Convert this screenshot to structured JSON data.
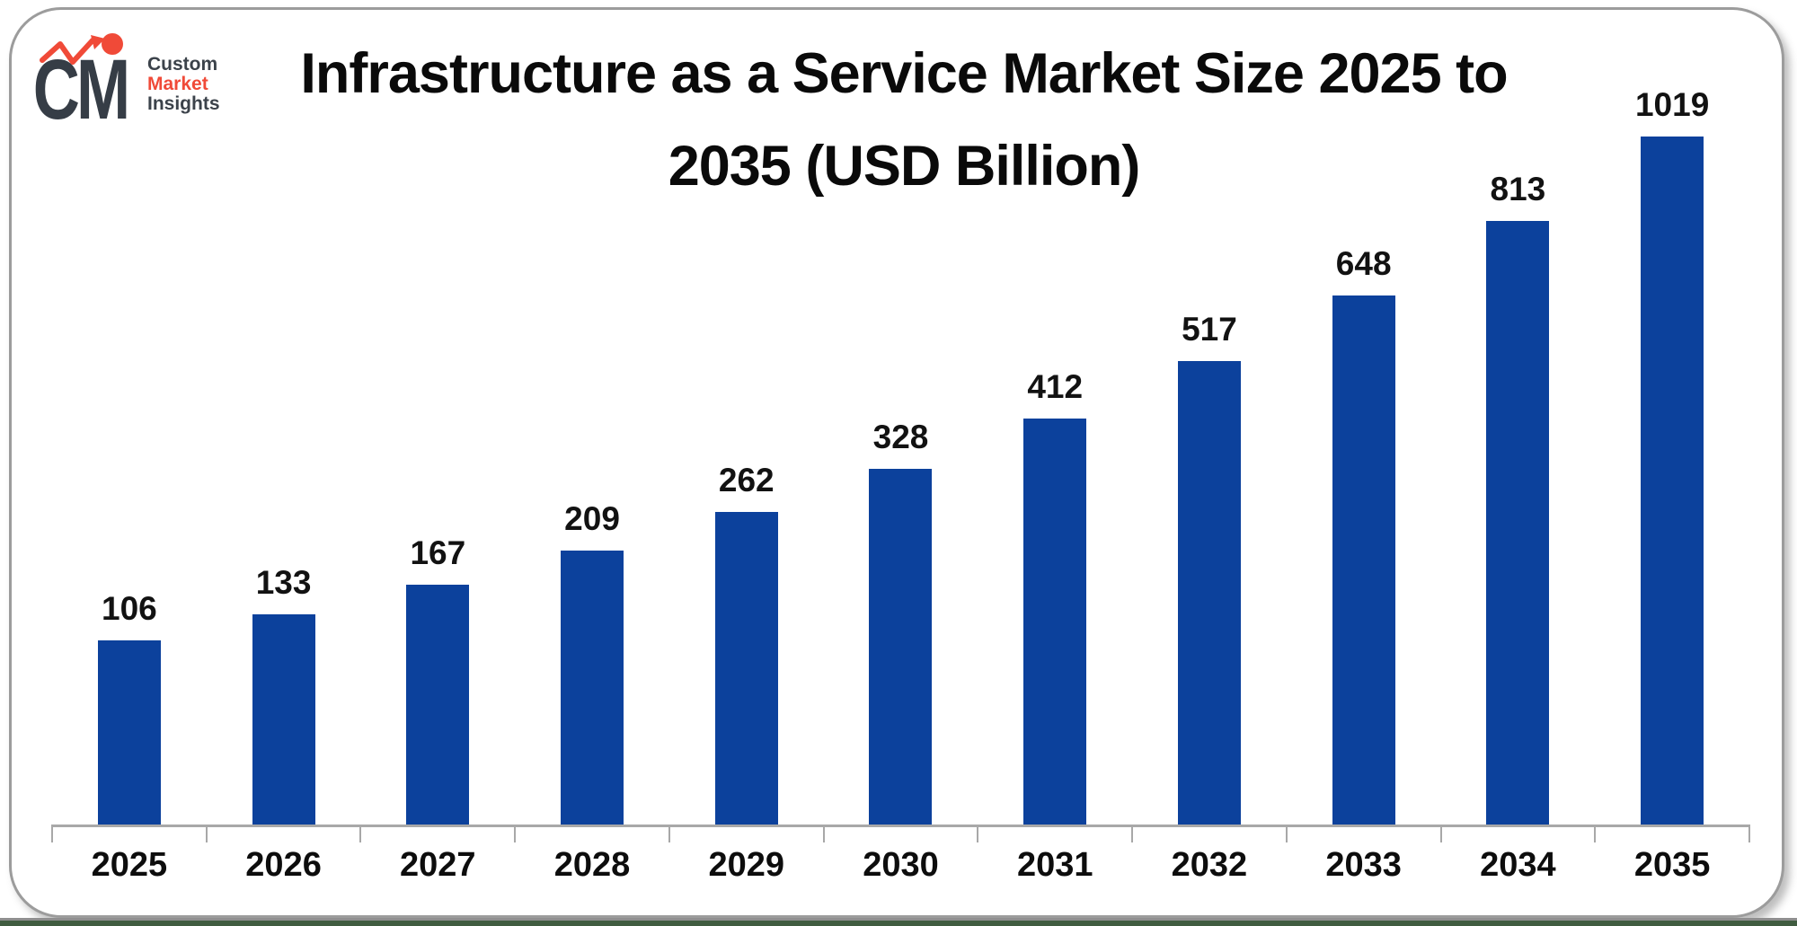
{
  "logo": {
    "monogram": "CM",
    "line1": "Custom",
    "line2": "Market",
    "line3": "Insights",
    "accent_color": "#f04a38",
    "dark_color": "#363d46"
  },
  "title_lines": {
    "line1": "Infrastructure as a Service Market Size 2025 to",
    "line2": "2035 (USD Billion)"
  },
  "chart_data": {
    "type": "bar",
    "title": "Infrastructure as a Service Market Size 2025 to 2035 (USD Billion)",
    "unit": "USD Billion",
    "categories": [
      "2025",
      "2026",
      "2027",
      "2028",
      "2029",
      "2030",
      "2031",
      "2032",
      "2033",
      "2034",
      "2035"
    ],
    "values": [
      106,
      133,
      167,
      209,
      262,
      328,
      412,
      517,
      648,
      813,
      1019
    ],
    "value_labels": "above-bars",
    "bar_color": "#0c419c",
    "axis_color": "#a8a8a8",
    "label_color": "#121212",
    "y_axis": "hidden",
    "grid": false,
    "legend": "none"
  },
  "footer": {
    "strip_color": "#405c40"
  }
}
